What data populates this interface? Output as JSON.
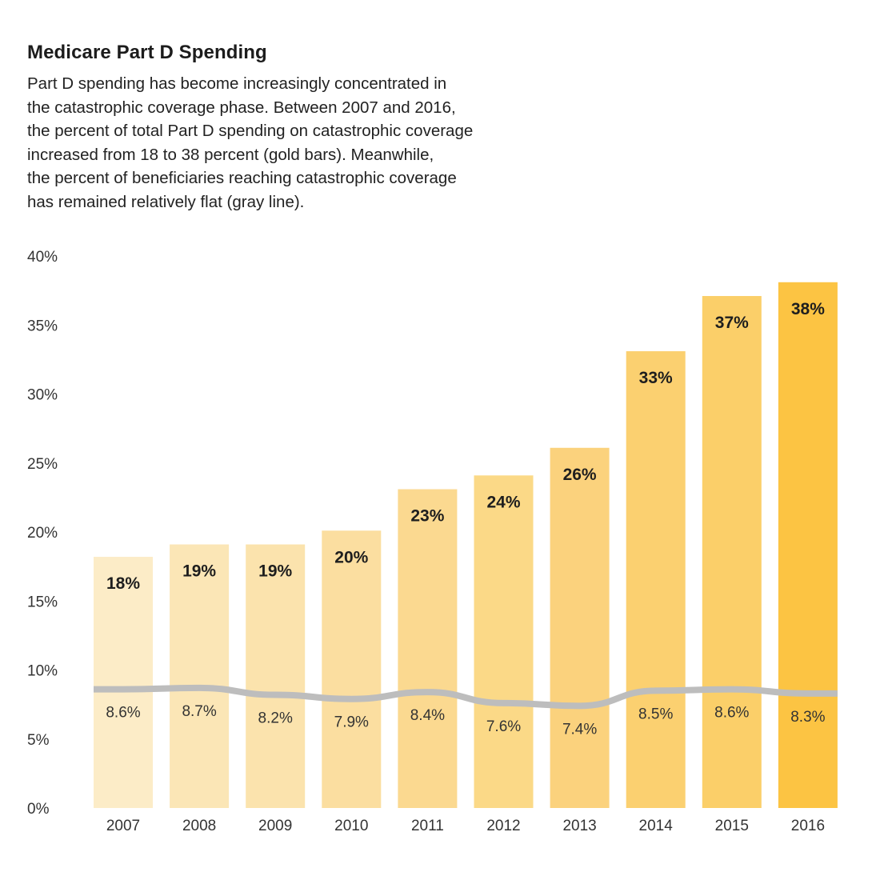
{
  "chart_data": {
    "type": "bar",
    "title": "Medicare Part D Spending",
    "subtitle_lines": [
      "Part D spending has become increasingly concentrated in",
      "the catastrophic coverage phase. Between 2007 and 2016,",
      "the percent of total Part D spending on catastrophic coverage",
      "increased from 18 to 38 percent (gold bars). Meanwhile,",
      "the percent of beneficiaries reaching catastrophic coverage",
      "has remained relatively flat (gray line)."
    ],
    "categories": [
      "2007",
      "2008",
      "2009",
      "2010",
      "2011",
      "2012",
      "2013",
      "2014",
      "2015",
      "2016"
    ],
    "series": [
      {
        "name": "Percent of total Part D spending on catastrophic coverage",
        "type": "bar",
        "values": [
          18.2,
          19.1,
          19.1,
          20.1,
          23.1,
          24.1,
          26.1,
          33.1,
          37.1,
          38.1
        ],
        "labels": [
          "18%",
          "19%",
          "19%",
          "20%",
          "23%",
          "24%",
          "26%",
          "33%",
          "37%",
          "38%"
        ],
        "colors": [
          "#fcecc7",
          "#fbe6b6",
          "#fbe3ad",
          "#fbdea0",
          "#fbd990",
          "#fbd987",
          "#fbd27d",
          "#fbd070",
          "#fbcf69",
          "#fcc443"
        ]
      },
      {
        "name": "Percent of beneficiaries reaching catastrophic coverage",
        "type": "line",
        "values": [
          8.6,
          8.7,
          8.2,
          7.9,
          8.4,
          7.6,
          7.4,
          8.5,
          8.6,
          8.3
        ],
        "labels": [
          "8.6%",
          "8.7%",
          "8.2%",
          "7.9%",
          "8.4%",
          "7.6%",
          "7.4%",
          "8.5%",
          "8.6%",
          "8.3%"
        ],
        "color": "#bdbdbd"
      }
    ],
    "y_ticks": [
      "0%",
      "5%",
      "10%",
      "15%",
      "20%",
      "25%",
      "30%",
      "35%",
      "40%"
    ],
    "ylim": [
      0,
      40
    ],
    "xlabel": "",
    "ylabel": "",
    "grid": false
  }
}
